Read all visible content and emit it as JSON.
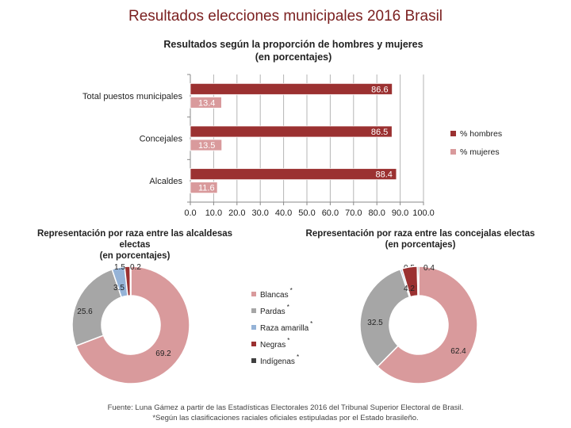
{
  "title": "Resultados elecciones municipales 2016 Brasil",
  "footer": {
    "source": "Fuente: Luna Gámez a partir de las Estadísticas Electorales 2016 del Tribunal Superior Electoral de Brasil.",
    "note": "*Según las clasificaciones raciales oficiales estipuladas por el Estado  brasileño."
  },
  "colors": {
    "hombres": "#9b3131",
    "mujeres": "#d99a9c",
    "blancas": "#d99a9c",
    "pardas": "#a6a6a6",
    "raza_amarilla": "#95b3d7",
    "negras": "#9b3131",
    "indigenas": "#404040"
  },
  "chart_data": [
    {
      "type": "bar",
      "orientation": "horizontal",
      "title": "Resultados según la proporción de hombres y mujeres",
      "subtitle": "(en porcentajes)",
      "categories": [
        "Total puestos municipales",
        "Concejales",
        "Alcaldes"
      ],
      "series": [
        {
          "name": "% hombres",
          "values": [
            86.6,
            86.5,
            88.4
          ]
        },
        {
          "name": "% mujeres",
          "values": [
            13.4,
            13.5,
            11.6
          ]
        }
      ],
      "xlim": [
        0,
        100
      ],
      "xticks": [
        "0.0",
        "10.0",
        "20.0",
        "30.0",
        "40.0",
        "50.0",
        "60.0",
        "70.0",
        "80.0",
        "90.0",
        "100.0"
      ],
      "grid": true,
      "legend": "right"
    },
    {
      "type": "pie",
      "donut": true,
      "title": "Representación por raza entre las alcaldesas electas",
      "subtitle": "(en porcentajes)",
      "labels": [
        "Blancas",
        "Pardas",
        "Raza amarilla",
        "Negras",
        "Indígenas"
      ],
      "values": [
        69.2,
        25.6,
        3.5,
        1.5,
        0.2
      ]
    },
    {
      "type": "pie",
      "donut": true,
      "title": "Representación por raza entre las concejalas electas",
      "subtitle": "(en porcentajes)",
      "labels": [
        "Blancas",
        "Pardas",
        "Raza amarilla",
        "Negras",
        "Indígenas"
      ],
      "values": [
        62.4,
        32.5,
        0.5,
        4.2,
        0.4
      ]
    }
  ],
  "race_legend": [
    {
      "label": "Blancas",
      "mark": "*",
      "color": "#d99a9c"
    },
    {
      "label": "Pardas",
      "mark": "*",
      "color": "#a6a6a6"
    },
    {
      "label": "Raza amarilla",
      "mark": "*",
      "color": "#95b3d7"
    },
    {
      "label": "Negras",
      "mark": "*",
      "color": "#9b3131"
    },
    {
      "label": "Indígenas",
      "mark": "*",
      "color": "#404040"
    }
  ]
}
